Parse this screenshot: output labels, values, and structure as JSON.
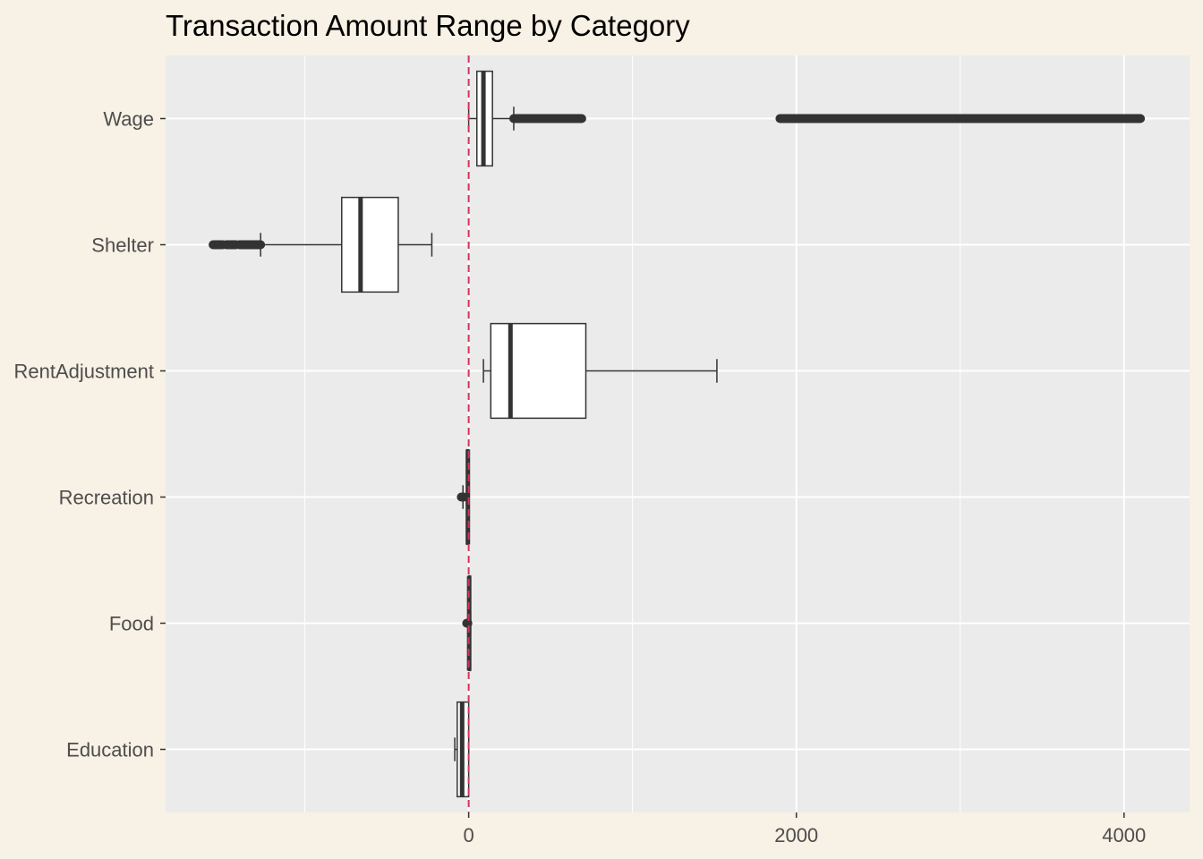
{
  "chart_data": {
    "type": "boxplot",
    "orientation": "horizontal",
    "title": "Transaction Amount Range by Category",
    "xlabel": "",
    "ylabel": "",
    "xlim": [
      -1850,
      4400
    ],
    "x_ticks": [
      0,
      2000,
      4000
    ],
    "x_tick_labels": [
      "0",
      "2000",
      "4000"
    ],
    "x_minor_ticks": [
      -1000,
      1000,
      3000
    ],
    "reference_line": {
      "x": 0,
      "style": "dashed",
      "color": "#d6335b"
    },
    "grid": true,
    "legend": "none",
    "colors": {
      "panel": "#ebebeb",
      "grid": "#ffffff",
      "box_fill": "#ffffff",
      "box_line": "#333333",
      "background": "#f8f1e5"
    },
    "categories": [
      "Wage",
      "Shelter",
      "RentAdjustment",
      "Recreation",
      "Food",
      "Education"
    ],
    "boxes": [
      {
        "category": "Wage",
        "whisker_low": 0,
        "q1": 50,
        "median": 90,
        "q3": 145,
        "whisker_high": 275,
        "outlier_ranges": [
          [
            275,
            690
          ],
          [
            1900,
            4100
          ]
        ]
      },
      {
        "category": "Shelter",
        "whisker_low": -1270,
        "q1": -775,
        "median": -660,
        "q3": -430,
        "whisker_high": -225,
        "outlier_ranges": [
          [
            -1560,
            -1500
          ],
          [
            -1480,
            -1420
          ],
          [
            -1400,
            -1270
          ]
        ]
      },
      {
        "category": "RentAdjustment",
        "whisker_low": 90,
        "q1": 135,
        "median": 255,
        "q3": 715,
        "whisker_high": 1515,
        "outlier_ranges": []
      },
      {
        "category": "Recreation",
        "whisker_low": -35,
        "q1": -12,
        "median": -5,
        "q3": 0,
        "whisker_high": 0,
        "outlier_ranges": [
          [
            -45,
            -30
          ]
        ]
      },
      {
        "category": "Food",
        "whisker_low": -5,
        "q1": 0,
        "median": 3,
        "q3": 10,
        "whisker_high": 12,
        "outlier_ranges": [
          [
            -12,
            -5
          ]
        ]
      },
      {
        "category": "Education",
        "whisker_low": -85,
        "q1": -70,
        "median": -40,
        "q3": 0,
        "whisker_high": 0,
        "outlier_ranges": []
      }
    ]
  }
}
